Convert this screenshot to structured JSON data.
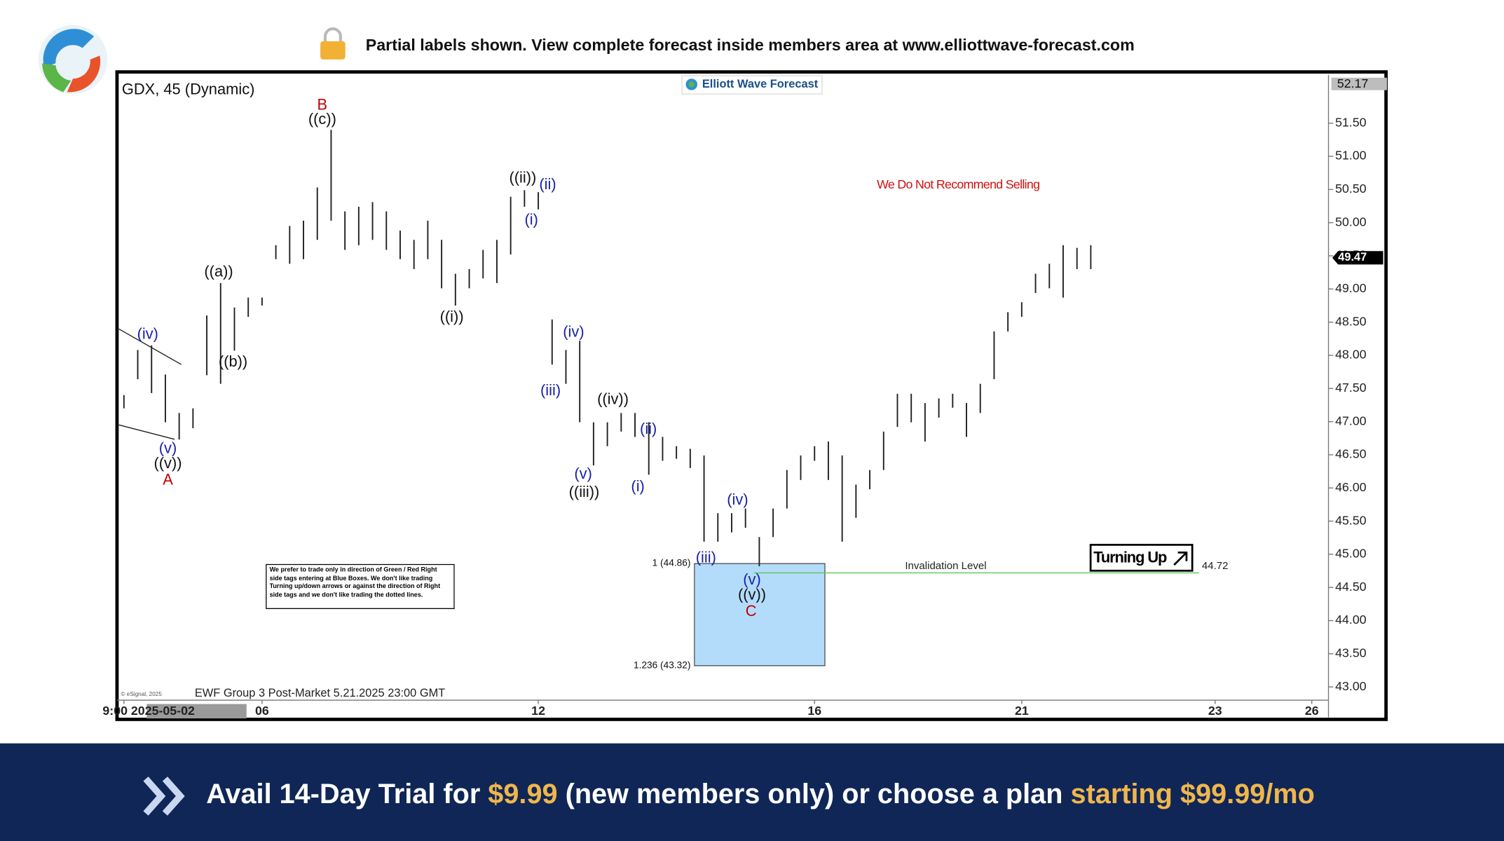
{
  "header": {
    "notice": "Partial labels shown. View complete forecast inside members area at www.elliottwave-forecast.com"
  },
  "chart_data": {
    "type": "range-bar",
    "title": "GDX, 45 (Dynamic)",
    "watermark": "Elliott Wave Forecast",
    "subtitle": "EWF Group 3 Post-Market 5.21.2025 23:00 GMT",
    "copyright": "© eSignal, 2025",
    "categories": [
      "9:00 2025-05-02",
      null,
      null,
      null,
      null,
      null,
      null,
      null,
      null,
      null,
      "06",
      null,
      null,
      null,
      null,
      null,
      null,
      null,
      null,
      null,
      null,
      null,
      null,
      null,
      null,
      null,
      null,
      null,
      null,
      null,
      "12",
      null,
      null,
      null,
      null,
      null,
      null,
      null,
      null,
      null,
      null,
      null,
      null,
      null,
      null,
      null,
      null,
      null,
      null,
      null,
      "16",
      null,
      null,
      null,
      null,
      null,
      null,
      null,
      null,
      null,
      null,
      null,
      null,
      null,
      null,
      "21",
      null,
      null,
      null,
      null,
      null,
      null,
      null,
      null,
      null,
      null,
      null,
      null,
      null,
      "23",
      null,
      null,
      null,
      null,
      null,
      null,
      "26",
      null
    ],
    "series": [
      {
        "color": "#222222",
        "high": [
          47.4,
          48.08,
          48.15,
          47.71,
          47.13,
          47.2,
          48.6,
          49.09,
          48.72,
          48.87,
          48.87,
          49.66,
          49.95,
          50.03,
          50.53,
          51.4,
          50.17,
          50.24,
          50.31,
          50.17,
          49.88,
          49.74,
          50.03,
          49.74,
          49.23,
          49.3,
          49.59,
          49.74,
          50.39,
          50.49,
          50.46,
          48.54,
          48.08,
          48.22,
          46.99,
          46.99,
          47.13,
          47.13,
          46.99,
          46.77,
          46.63,
          46.59,
          46.49,
          45.62,
          45.62,
          45.69,
          45.26,
          45.69,
          46.27,
          46.49,
          46.63,
          46.7,
          46.49,
          46.05,
          46.27,
          46.85,
          47.42,
          47.42,
          47.28,
          47.35,
          47.42,
          47.28,
          47.57,
          48.36,
          48.65,
          48.8,
          49.23,
          49.38,
          49.66,
          49.62,
          49.66,
          null,
          null,
          null,
          null,
          null,
          null,
          null,
          null,
          null,
          null,
          null,
          null,
          null,
          null,
          null,
          null,
          null
        ],
        "low": [
          47.2,
          47.64,
          47.43,
          46.99,
          46.73,
          46.9,
          47.7,
          47.57,
          48.07,
          48.58,
          48.75,
          49.45,
          49.38,
          49.45,
          49.74,
          50.03,
          49.59,
          49.66,
          49.74,
          49.59,
          49.45,
          49.3,
          49.45,
          49.01,
          48.75,
          49.01,
          49.16,
          49.09,
          49.52,
          50.24,
          50.2,
          47.86,
          47.57,
          46.99,
          46.34,
          46.63,
          46.85,
          46.77,
          46.2,
          46.41,
          46.44,
          46.3,
          45.19,
          45.19,
          45.33,
          45.4,
          44.82,
          45.26,
          45.69,
          46.12,
          46.41,
          46.12,
          45.19,
          45.55,
          45.98,
          46.27,
          46.92,
          46.99,
          46.7,
          47.06,
          47.21,
          46.77,
          47.13,
          47.64,
          48.36,
          48.58,
          48.94,
          49.01,
          48.87,
          49.3,
          49.3,
          null,
          null,
          null,
          null,
          null,
          null,
          null,
          null,
          null,
          null,
          null,
          null,
          null,
          null,
          null,
          null,
          null
        ]
      }
    ],
    "ylim": [
      42.8,
      52.2
    ],
    "yticks": [
      {
        "value": 43,
        "label": "43.00"
      },
      {
        "value": 43.5,
        "label": "43.50"
      },
      {
        "value": 44,
        "label": "44.00"
      },
      {
        "value": 44.5,
        "label": "44.50"
      },
      {
        "value": 45,
        "label": "45.00"
      },
      {
        "value": 45.5,
        "label": "45.50"
      },
      {
        "value": 46,
        "label": "46.00"
      },
      {
        "value": 46.5,
        "label": "46.50"
      },
      {
        "value": 47,
        "label": "47.00"
      },
      {
        "value": 47.5,
        "label": "47.50"
      },
      {
        "value": 48,
        "label": "48.00"
      },
      {
        "value": 48.5,
        "label": "48.50"
      },
      {
        "value": 49,
        "label": "49.00"
      },
      {
        "value": 49.5,
        "label": "49.50"
      },
      {
        "value": 50,
        "label": "50.00"
      },
      {
        "value": 50.5,
        "label": "50.50"
      },
      {
        "value": 51,
        "label": "51.00"
      },
      {
        "value": 51.5,
        "label": "51.50"
      }
    ],
    "high_marker": 52.17,
    "last_price": 49.47,
    "blue_box": {
      "color": "#b3dcfa",
      "levels": [
        {
          "value": 44.86,
          "label": "1 (44.86)"
        },
        {
          "value": 43.32,
          "label": "1.236 (43.32)"
        }
      ]
    },
    "invalidation": {
      "label": "Invalidation Level",
      "value": 44.72,
      "color": "#5cc45c"
    },
    "note": "We Do Not Recommend Selling",
    "signal": "Turning Up",
    "disclaimer": "We prefer to trade only in direction of Green / Red Right side tags entering at Blue Boxes. We don't like trading Turning up/down arrows or against the direction of Right side tags and we don't like trading the dotted lines.",
    "annotations": [
      {
        "text": "B",
        "color": "#c00000"
      },
      {
        "text": "((c))",
        "color": "#111111"
      },
      {
        "text": "((a))",
        "color": "#111111"
      },
      {
        "text": "((b))",
        "color": "#111111"
      },
      {
        "text": "(iv)",
        "color": "#1a22a8"
      },
      {
        "text": "(v)",
        "color": "#1a22a8"
      },
      {
        "text": "((v))",
        "color": "#111111"
      },
      {
        "text": "A",
        "color": "#c00000"
      },
      {
        "text": "((ii))",
        "color": "#111111"
      },
      {
        "text": "(ii)",
        "color": "#1a22a8"
      },
      {
        "text": "(i)",
        "color": "#1a22a8"
      },
      {
        "text": "((i))",
        "color": "#111111"
      },
      {
        "text": "(iv)",
        "color": "#1a22a8"
      },
      {
        "text": "(iii)",
        "color": "#1a22a8"
      },
      {
        "text": "(v)",
        "color": "#1a22a8"
      },
      {
        "text": "((iii))",
        "color": "#111111"
      },
      {
        "text": "((iv))",
        "color": "#111111"
      },
      {
        "text": "(ii)",
        "color": "#1a22a8"
      },
      {
        "text": "(i)",
        "color": "#1a22a8"
      },
      {
        "text": "(iv)",
        "color": "#1a22a8"
      },
      {
        "text": "(iii)",
        "color": "#1a22a8"
      },
      {
        "text": "(v)",
        "color": "#1a22a8"
      },
      {
        "text": "((v))",
        "color": "#111111"
      },
      {
        "text": "C",
        "color": "#c00000"
      }
    ]
  },
  "footer": {
    "parts": [
      "Avail 14-Day Trial for",
      "$9.99",
      "(new members only) or choose a plan",
      "starting $99.99/mo"
    ]
  }
}
